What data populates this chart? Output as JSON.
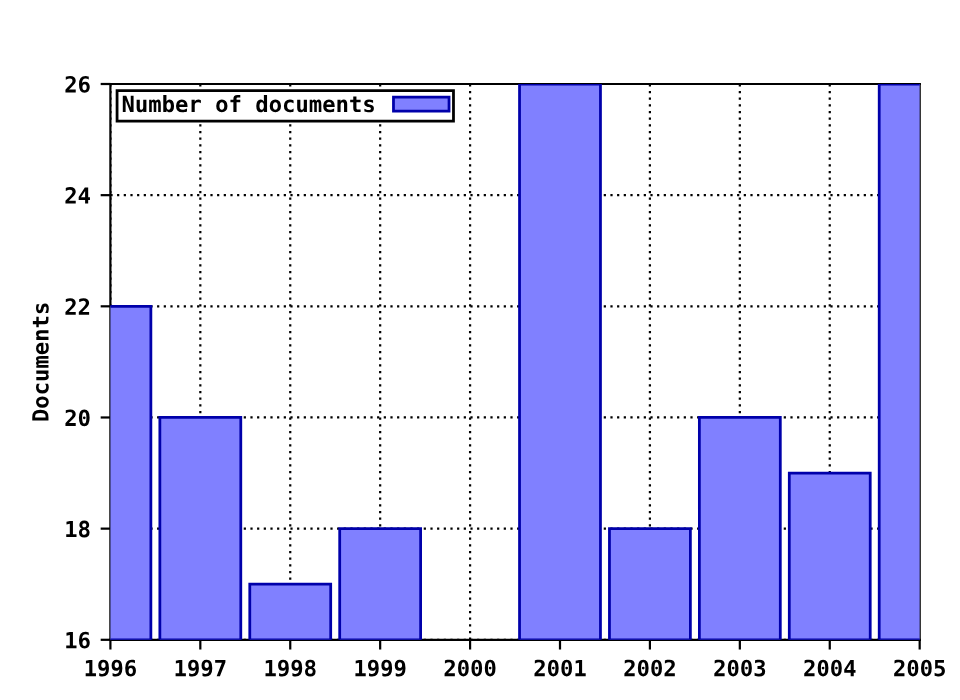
{
  "chart_data": {
    "type": "bar",
    "ylabel": "Documents",
    "x": [
      1996,
      1997,
      1998,
      1999,
      2000,
      2001,
      2002,
      2003,
      2004,
      2005
    ],
    "series": [
      {
        "name": "Number of documents",
        "color": "#8080ff",
        "values": [
          22,
          20,
          17,
          18,
          null,
          26,
          18,
          20,
          19,
          26
        ]
      }
    ],
    "xlim": [
      1996,
      2005
    ],
    "xticks": [
      1996,
      1997,
      1998,
      1999,
      2000,
      2001,
      2002,
      2003,
      2004,
      2005
    ],
    "ylim": [
      16,
      26
    ],
    "yticks": [
      16,
      18,
      20,
      22,
      24,
      26
    ],
    "grid": true,
    "legend": "top left"
  }
}
